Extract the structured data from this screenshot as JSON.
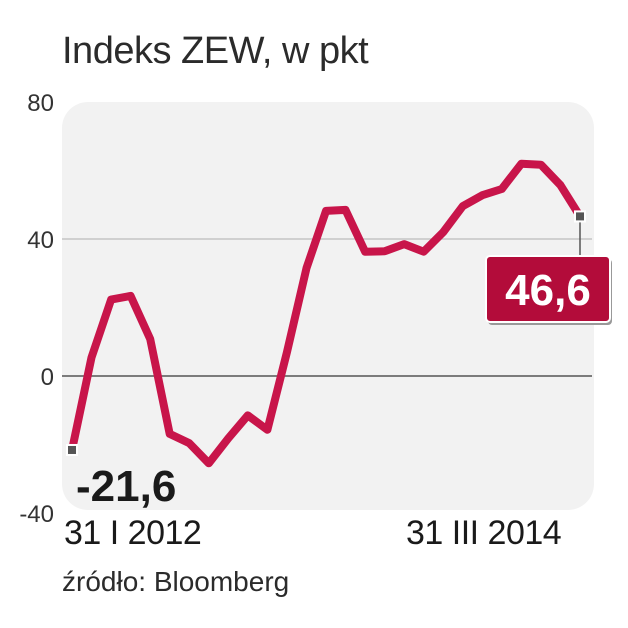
{
  "title": "Indeks ZEW, w pkt",
  "source": "źródło: Bloomberg",
  "colors": {
    "line": "#c8154a",
    "background_panel": "#f2f2f2",
    "badge": "#b30c3a",
    "grid": "#bdbdbd",
    "zero_line": "#555555"
  },
  "chart_data": {
    "type": "line",
    "title": "Indeks ZEW, w pkt",
    "x_start_label": "31 I 2012",
    "x_end_label": "31 III 2014",
    "x": [
      "2012-01",
      "2012-02",
      "2012-03",
      "2012-04",
      "2012-05",
      "2012-06",
      "2012-07",
      "2012-08",
      "2012-09",
      "2012-10",
      "2012-11",
      "2012-12",
      "2013-01",
      "2013-02",
      "2013-03",
      "2013-04",
      "2013-05",
      "2013-06",
      "2013-07",
      "2013-08",
      "2013-09",
      "2013-10",
      "2013-11",
      "2013-12",
      "2014-01",
      "2014-02",
      "2014-03"
    ],
    "values": [
      -21.6,
      5.4,
      22.3,
      23.4,
      10.8,
      -16.9,
      -19.6,
      -25.5,
      -18.2,
      -11.5,
      -15.7,
      6.9,
      31.5,
      48.2,
      48.5,
      36.3,
      36.4,
      38.5,
      36.3,
      42.0,
      49.6,
      52.8,
      54.6,
      62.0,
      61.7,
      55.7,
      46.6
    ],
    "ylim": [
      -40,
      80
    ],
    "yticks": [
      "80",
      "40",
      "0",
      "-40"
    ],
    "ytick_values": [
      80,
      40,
      0,
      -40
    ],
    "grid": true,
    "first_value_label": "-21,6",
    "last_value_label": "46,6"
  }
}
